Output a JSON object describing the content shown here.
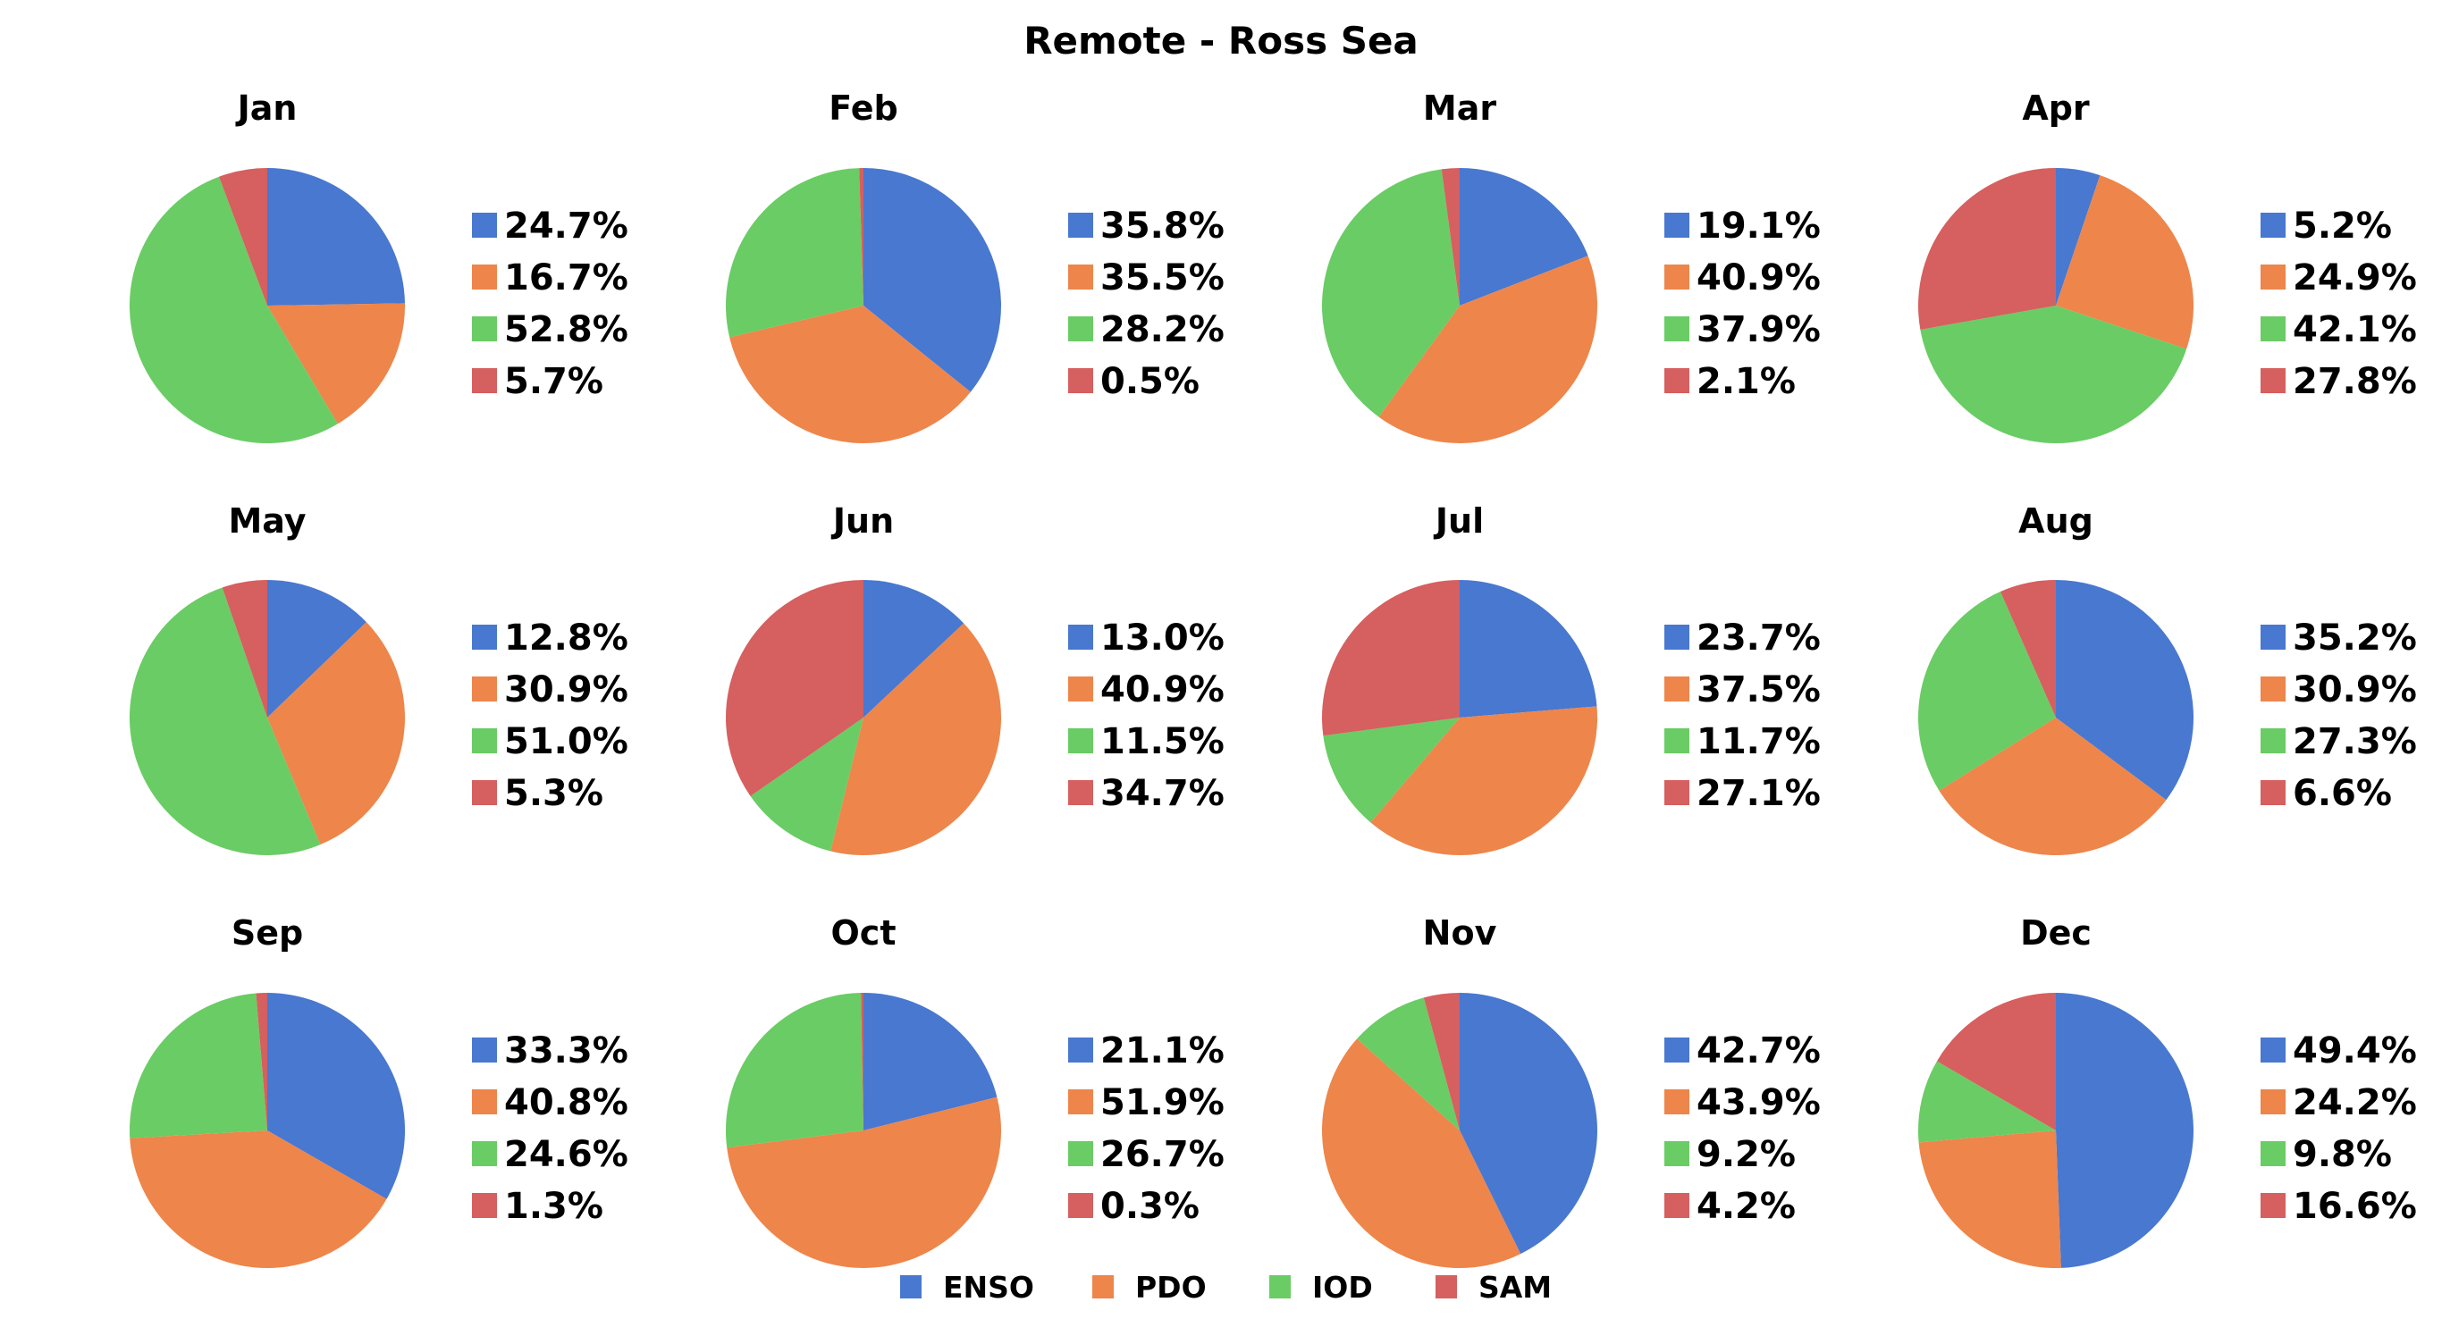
{
  "chart_data": {
    "type": "pie",
    "title": "Remote - Ross Sea",
    "categories": [
      "ENSO",
      "PDO",
      "IOD",
      "SAM"
    ],
    "colors": [
      "#4878d0",
      "#ee854a",
      "#6acc64",
      "#d65f5f"
    ],
    "legend_position": "bottom-center",
    "start_angle_deg": 90,
    "direction": "clockwise",
    "panels": [
      {
        "title": "Jan",
        "values": [
          24.7,
          16.7,
          52.8,
          5.7
        ],
        "labels": [
          "24.7%",
          "16.7%",
          "52.8%",
          "5.7%"
        ]
      },
      {
        "title": "Feb",
        "values": [
          35.8,
          35.5,
          28.2,
          0.5
        ],
        "labels": [
          "35.8%",
          "35.5%",
          "28.2%",
          "0.5%"
        ]
      },
      {
        "title": "Mar",
        "values": [
          19.1,
          40.9,
          37.9,
          2.1
        ],
        "labels": [
          "19.1%",
          "40.9%",
          "37.9%",
          "2.1%"
        ]
      },
      {
        "title": "Apr",
        "values": [
          5.2,
          24.9,
          42.1,
          27.8
        ],
        "labels": [
          "5.2%",
          "24.9%",
          "42.1%",
          "27.8%"
        ]
      },
      {
        "title": "May",
        "values": [
          12.8,
          30.9,
          51.0,
          5.3
        ],
        "labels": [
          "12.8%",
          "30.9%",
          "51.0%",
          "5.3%"
        ]
      },
      {
        "title": "Jun",
        "values": [
          13.0,
          40.9,
          11.5,
          34.7
        ],
        "labels": [
          "13.0%",
          "40.9%",
          "11.5%",
          "34.7%"
        ]
      },
      {
        "title": "Jul",
        "values": [
          23.7,
          37.5,
          11.7,
          27.1
        ],
        "labels": [
          "23.7%",
          "37.5%",
          "11.7%",
          "27.1%"
        ]
      },
      {
        "title": "Aug",
        "values": [
          35.2,
          30.9,
          27.3,
          6.6
        ],
        "labels": [
          "35.2%",
          "30.9%",
          "27.3%",
          "6.6%"
        ]
      },
      {
        "title": "Sep",
        "values": [
          33.3,
          40.8,
          24.6,
          1.3
        ],
        "labels": [
          "33.3%",
          "40.8%",
          "24.6%",
          "1.3%"
        ]
      },
      {
        "title": "Oct",
        "values": [
          21.1,
          51.9,
          26.7,
          0.3
        ],
        "labels": [
          "21.1%",
          "51.9%",
          "26.7%",
          "0.3%"
        ]
      },
      {
        "title": "Nov",
        "values": [
          42.7,
          43.9,
          9.2,
          4.2
        ],
        "labels": [
          "42.7%",
          "43.9%",
          "9.2%",
          "4.2%"
        ]
      },
      {
        "title": "Dec",
        "values": [
          49.4,
          24.2,
          9.8,
          16.6
        ],
        "labels": [
          "49.4%",
          "24.2%",
          "9.8%",
          "16.6%"
        ]
      }
    ]
  }
}
